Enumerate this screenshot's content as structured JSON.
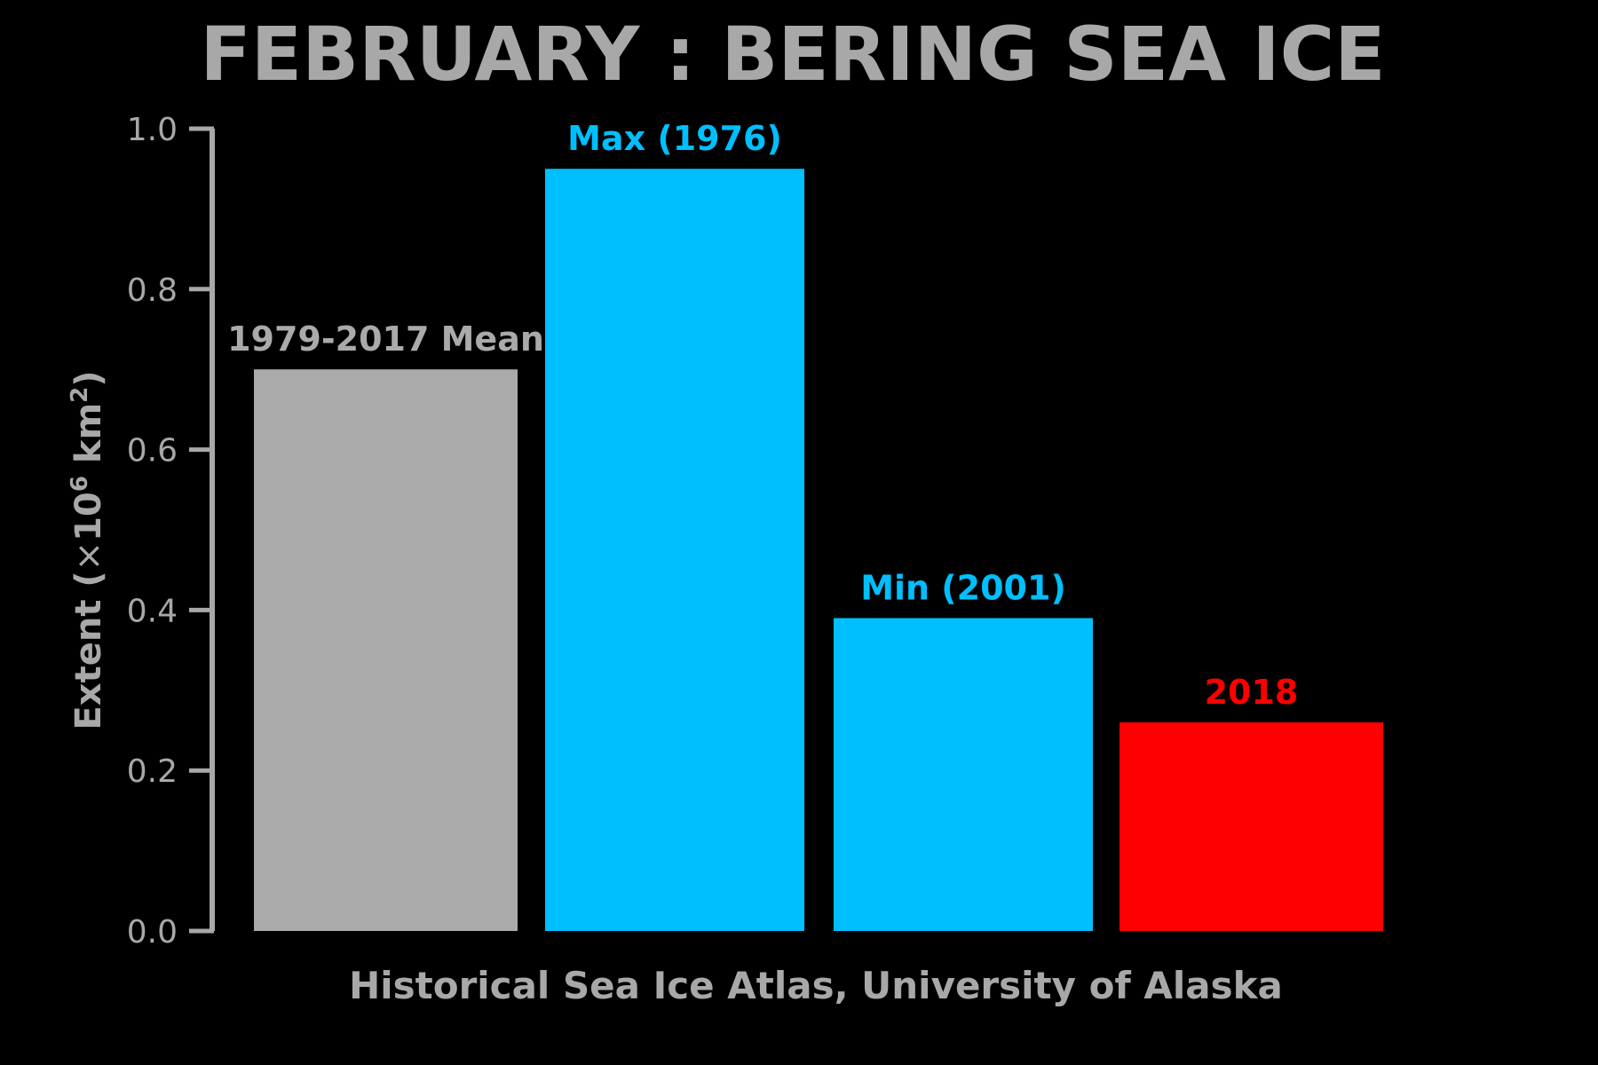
{
  "chart_data": {
    "type": "bar",
    "title": "FEBRUARY : BERING SEA ICE",
    "ylabel": {
      "prefix": "Extent (",
      "times": "×",
      "base": "10",
      "exp": "6",
      "unit": " km",
      "unit_exp": "2",
      "suffix": ")"
    },
    "xlabel": "Historical Sea Ice Atlas, University of Alaska",
    "ylim": [
      0.0,
      1.0
    ],
    "yticks": [
      "0.0",
      "0.2",
      "0.4",
      "0.6",
      "0.8",
      "1.0"
    ],
    "categories": [
      "1979-2017 Mean",
      "Max (1976)",
      "Min (2001)",
      "2018"
    ],
    "values": [
      0.7,
      0.95,
      0.39,
      0.26
    ],
    "colors": [
      "#aaaaaa",
      "#00bfff",
      "#00bfff",
      "#ff0000"
    ],
    "grid": false,
    "legend": "none"
  }
}
